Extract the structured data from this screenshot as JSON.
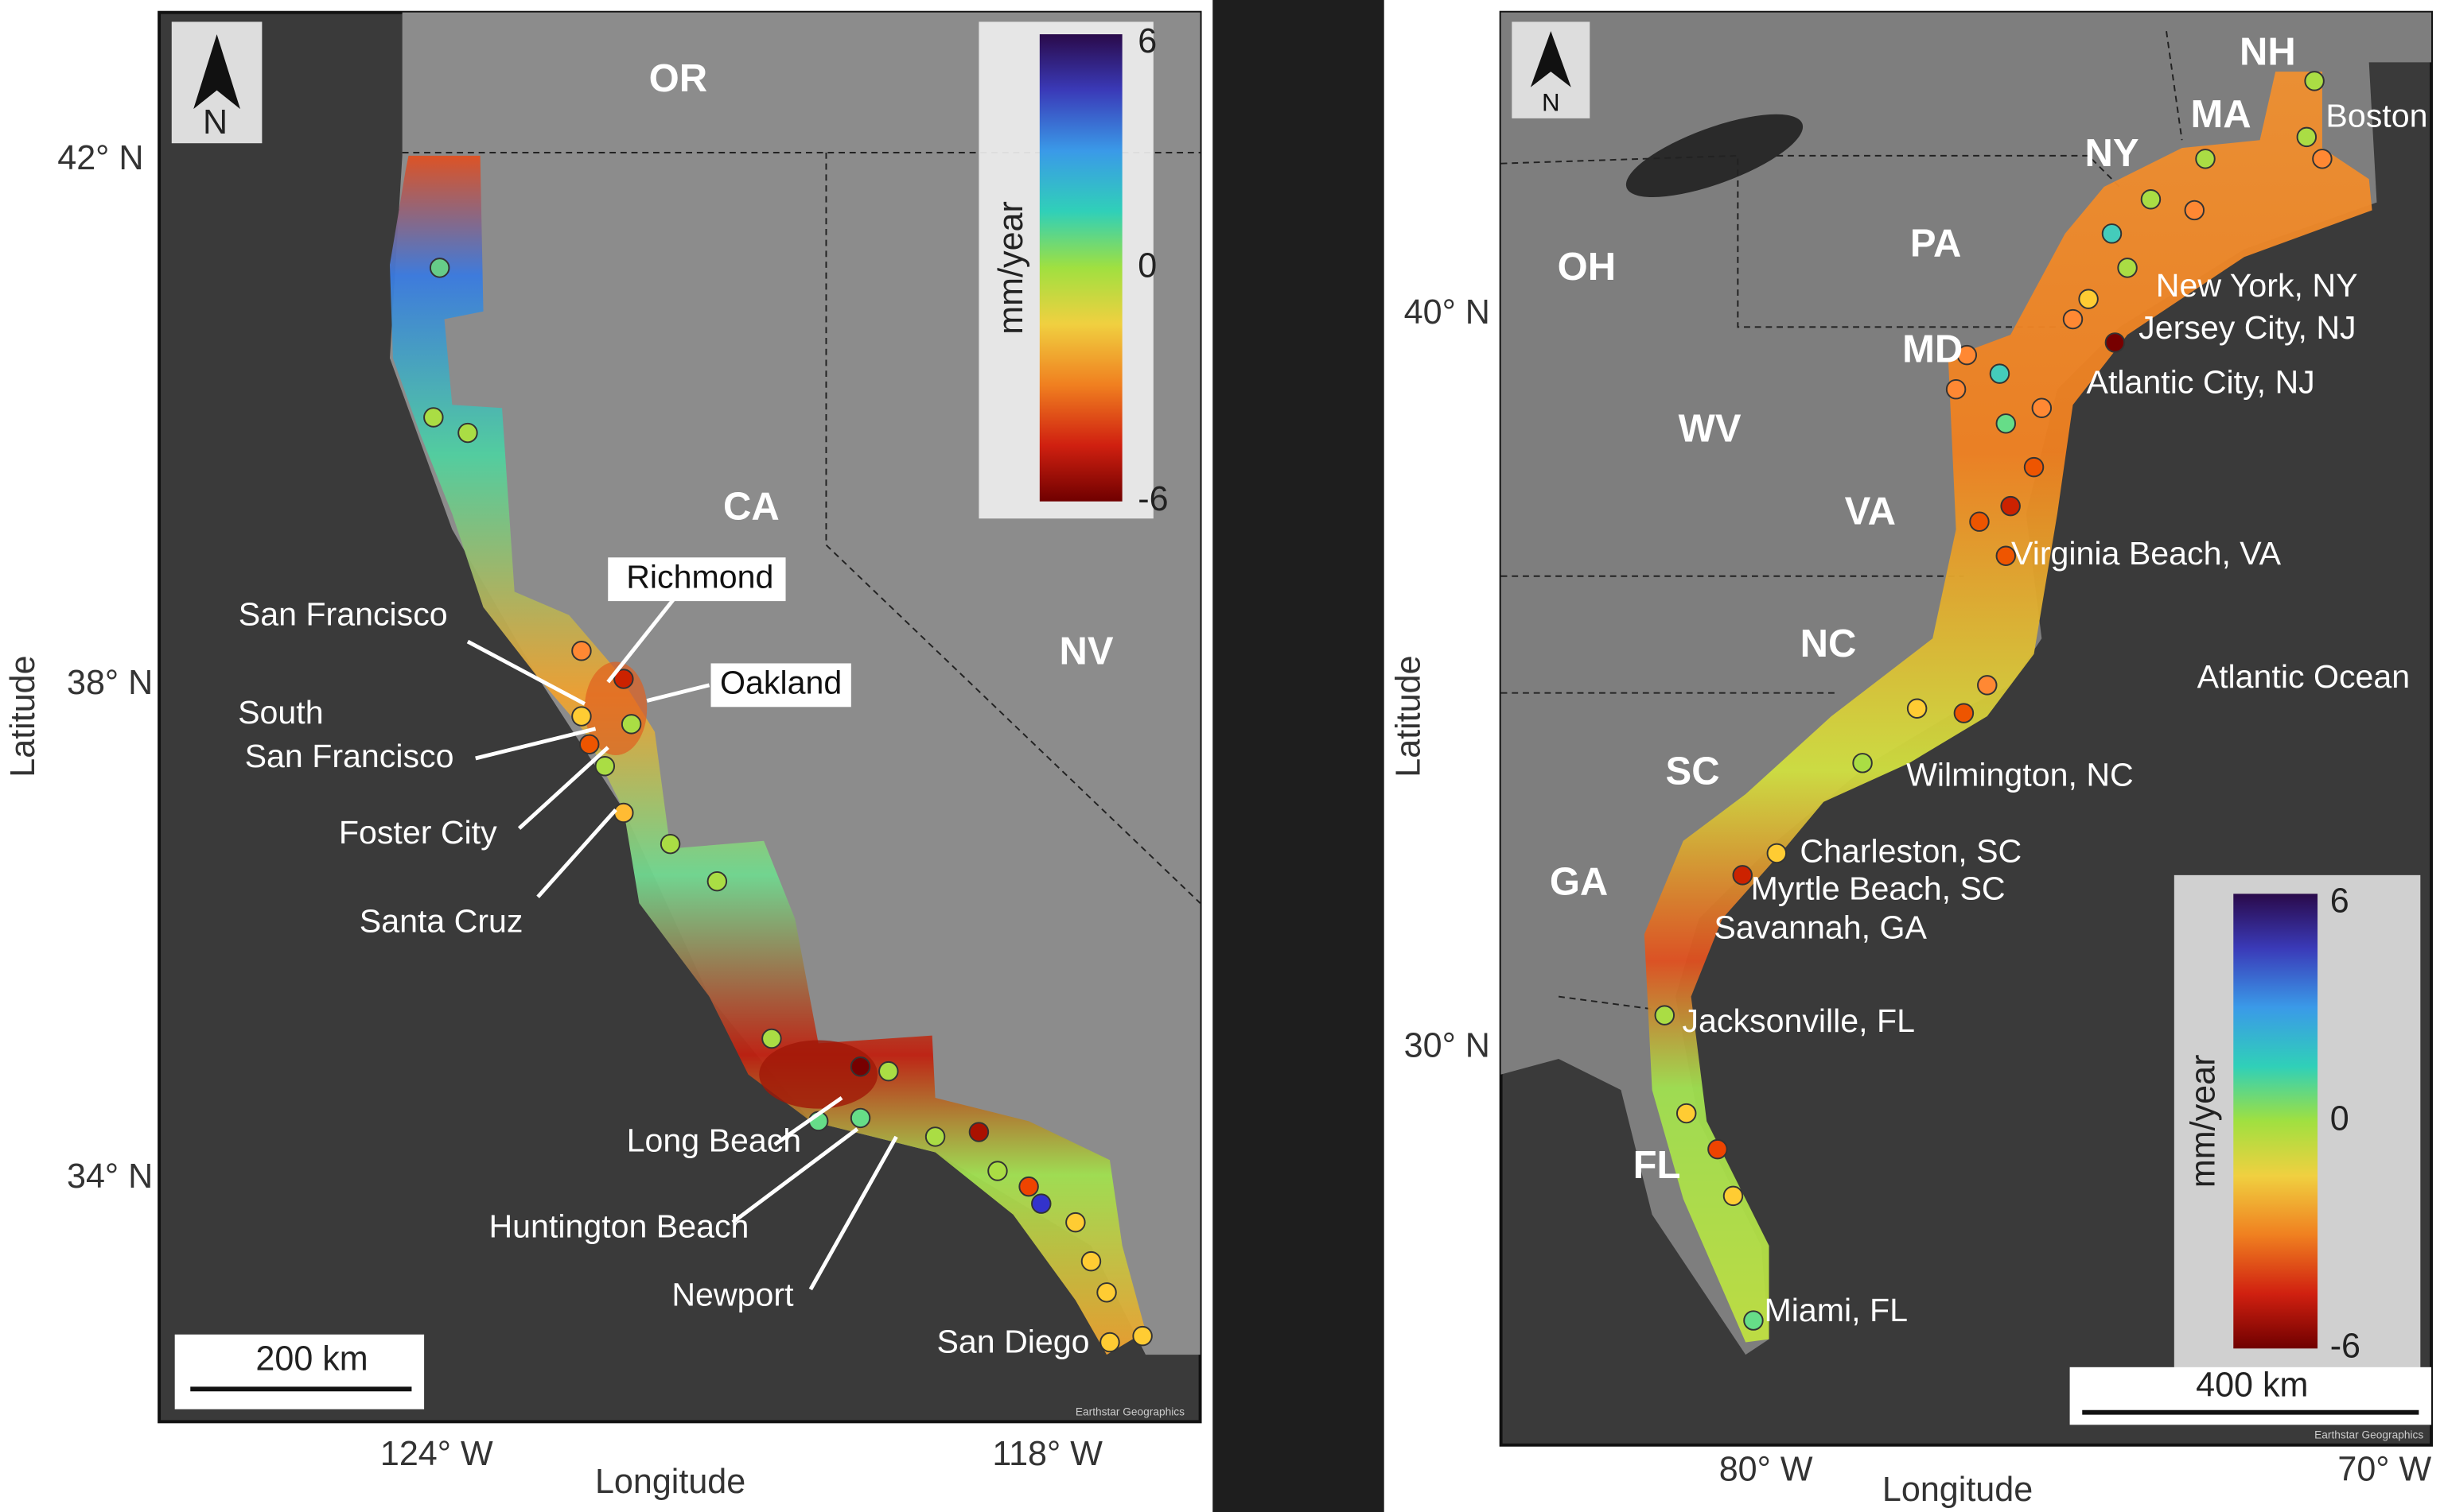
{
  "west_map": {
    "x_axis_label": "Longitude",
    "y_axis_label": "Latitude",
    "lat_ticks": [
      "42° N",
      "38° N",
      "34° N"
    ],
    "lon_ticks": [
      "124° W",
      "118° W"
    ],
    "states": [
      "OR",
      "CA",
      "NV"
    ],
    "boxed_cities": [
      "Richmond",
      "Oakland"
    ],
    "cities": [
      "San Francisco",
      "South",
      "San Francisco",
      "Foster City",
      "Santa Cruz",
      "Long Beach",
      "Huntington Beach",
      "Newport",
      "San Diego"
    ],
    "colorbar": {
      "label": "mm/year",
      "ticks": [
        6,
        0,
        -6
      ]
    },
    "scale_bar": "200 km",
    "north": "N",
    "credit": "Earthstar Geographics"
  },
  "east_map": {
    "x_axis_label": "Longitude",
    "y_axis_label": "Latitude",
    "lat_ticks": [
      "40° N",
      "30° N"
    ],
    "lon_ticks": [
      "80° W",
      "70° W"
    ],
    "states": [
      "OH",
      "PA",
      "WV",
      "VA",
      "NC",
      "SC",
      "GA",
      "FL",
      "NY",
      "MA",
      "NH",
      "MD"
    ],
    "cities": [
      "Boston",
      "New York, NY",
      "Jersey City, NJ",
      "Atlantic City, NJ",
      "Virginia Beach, VA",
      "Wilmington, NC",
      "Charleston, SC",
      "Myrtle Beach, SC",
      "Savannah, GA",
      "Jacksonville, FL",
      "Miami, FL"
    ],
    "ocean": "Atlantic Ocean",
    "colorbar": {
      "label": "mm/year",
      "ticks": [
        6,
        0,
        -6
      ]
    },
    "scale_bar": "400 km",
    "north": "N",
    "credit": "Earthstar Geographics"
  }
}
